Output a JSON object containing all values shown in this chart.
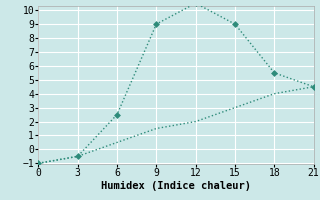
{
  "line1_x": [
    0,
    3,
    6,
    9,
    12,
    15,
    18,
    21
  ],
  "line1_y": [
    -1,
    -0.5,
    2.5,
    9,
    10.5,
    9,
    5.5,
    4.5
  ],
  "line2_x": [
    0,
    3,
    6,
    9,
    12,
    15,
    18,
    21
  ],
  "line2_y": [
    -1,
    -0.5,
    0.5,
    1.5,
    2.0,
    3.0,
    4.0,
    4.5
  ],
  "line_color": "#2e8b7a",
  "bg_color": "#cce8e8",
  "grid_color": "#ffffff",
  "xlabel": "Humidex (Indice chaleur)",
  "xlim": [
    0,
    21
  ],
  "ylim": [
    -1,
    10
  ],
  "xticks": [
    0,
    3,
    6,
    9,
    12,
    15,
    18,
    21
  ],
  "yticks": [
    -1,
    0,
    1,
    2,
    3,
    4,
    5,
    6,
    7,
    8,
    9,
    10
  ],
  "xlabel_fontsize": 7.5,
  "tick_fontsize": 7,
  "marker": "D",
  "marker_size": 3
}
